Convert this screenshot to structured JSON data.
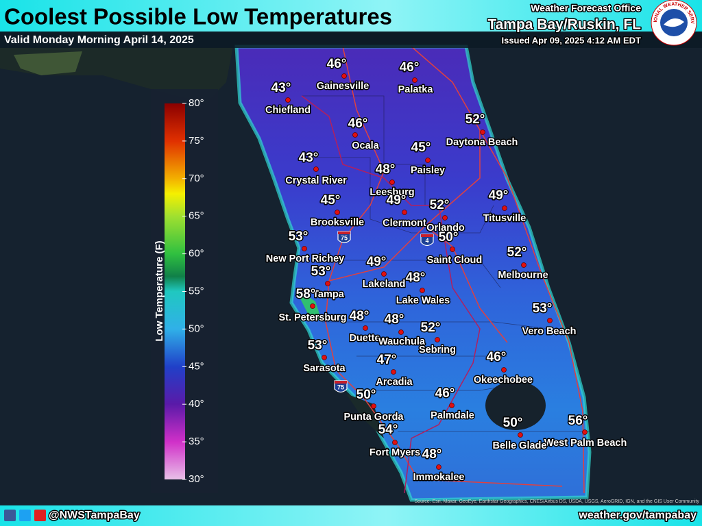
{
  "header": {
    "title": "Coolest Possible Low Temperatures",
    "subtitle": "Valid Monday Morning April 14, 2025",
    "office_line": "Weather Forecast Office",
    "office": "Tampa Bay/Ruskin, FL",
    "issued": "Issued Apr 09, 2025 4:12 AM EDT",
    "logo_text": "NATIONAL WEATHER SERVICE"
  },
  "legend": {
    "title": "Low Temperature (F)",
    "ticks": [
      "80°",
      "75°",
      "70°",
      "65°",
      "60°",
      "55°",
      "50°",
      "45°",
      "40°",
      "35°",
      "30°"
    ]
  },
  "cities": [
    {
      "name": "Gainesville",
      "temp": "46°"
    },
    {
      "name": "Palatka",
      "temp": "46°"
    },
    {
      "name": "Chiefland",
      "temp": "43°"
    },
    {
      "name": "Ocala",
      "temp": "46°"
    },
    {
      "name": "Daytona Beach",
      "temp": "52°"
    },
    {
      "name": "Paisley",
      "temp": "45°"
    },
    {
      "name": "Crystal River",
      "temp": "43°"
    },
    {
      "name": "Leesburg",
      "temp": "48°"
    },
    {
      "name": "Clermont",
      "temp": "49°"
    },
    {
      "name": "Orlando",
      "temp": "52°"
    },
    {
      "name": "Titusville",
      "temp": "49°"
    },
    {
      "name": "Brooksville",
      "temp": "45°"
    },
    {
      "name": "New Port Richey",
      "temp": "53°"
    },
    {
      "name": "Saint Cloud",
      "temp": "50°"
    },
    {
      "name": "Melbourne",
      "temp": "52°"
    },
    {
      "name": "Tampa",
      "temp": "53°"
    },
    {
      "name": "Lakeland",
      "temp": "49°"
    },
    {
      "name": "Lake Wales",
      "temp": "48°"
    },
    {
      "name": "St. Petersburg",
      "temp": "58°"
    },
    {
      "name": "Vero Beach",
      "temp": "53°"
    },
    {
      "name": "Duette",
      "temp": "48°"
    },
    {
      "name": "Wauchula",
      "temp": "48°"
    },
    {
      "name": "Sebring",
      "temp": "52°"
    },
    {
      "name": "Sarasota",
      "temp": "53°"
    },
    {
      "name": "Arcadia",
      "temp": "47°"
    },
    {
      "name": "Okeechobee",
      "temp": "46°"
    },
    {
      "name": "Punta Gorda",
      "temp": "50°"
    },
    {
      "name": "Palmdale",
      "temp": "46°"
    },
    {
      "name": "West Palm Beach",
      "temp": "56°"
    },
    {
      "name": "Belle Glade",
      "temp": "50°"
    },
    {
      "name": "Fort Myers",
      "temp": "54°"
    },
    {
      "name": "Immokalee",
      "temp": "48°"
    }
  ],
  "shields": [
    "75",
    "4",
    "75"
  ],
  "attribution": "Source: Esri, Maxar, GeoEye, Earthstar Geographics, CNES/Airbus DS, USDA, USGS, AeroGRID, IGN, and the GIS User Community",
  "footer": {
    "handle": "@NWSTampaBay",
    "url": "weather.gov/tampabay"
  }
}
